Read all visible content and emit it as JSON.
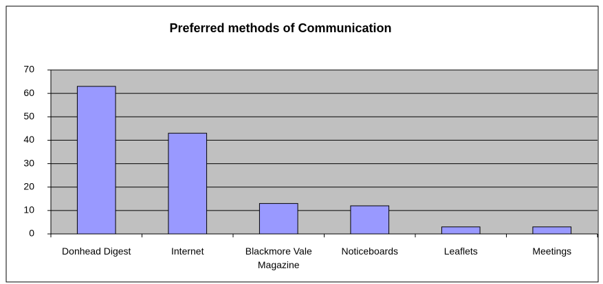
{
  "chart_data": {
    "type": "bar",
    "title": "Preferred methods of Communication",
    "categories": [
      "Donhead Digest",
      "Internet",
      "Blackmore Vale Magazine",
      "Noticeboards",
      "Leaflets",
      "Meetings"
    ],
    "values": [
      63,
      43,
      13,
      12,
      3,
      3
    ],
    "color": "#9999ff",
    "ylim": [
      0,
      70
    ],
    "yticks": [
      0,
      10,
      20,
      30,
      40,
      50,
      60,
      70
    ],
    "grid": true
  }
}
